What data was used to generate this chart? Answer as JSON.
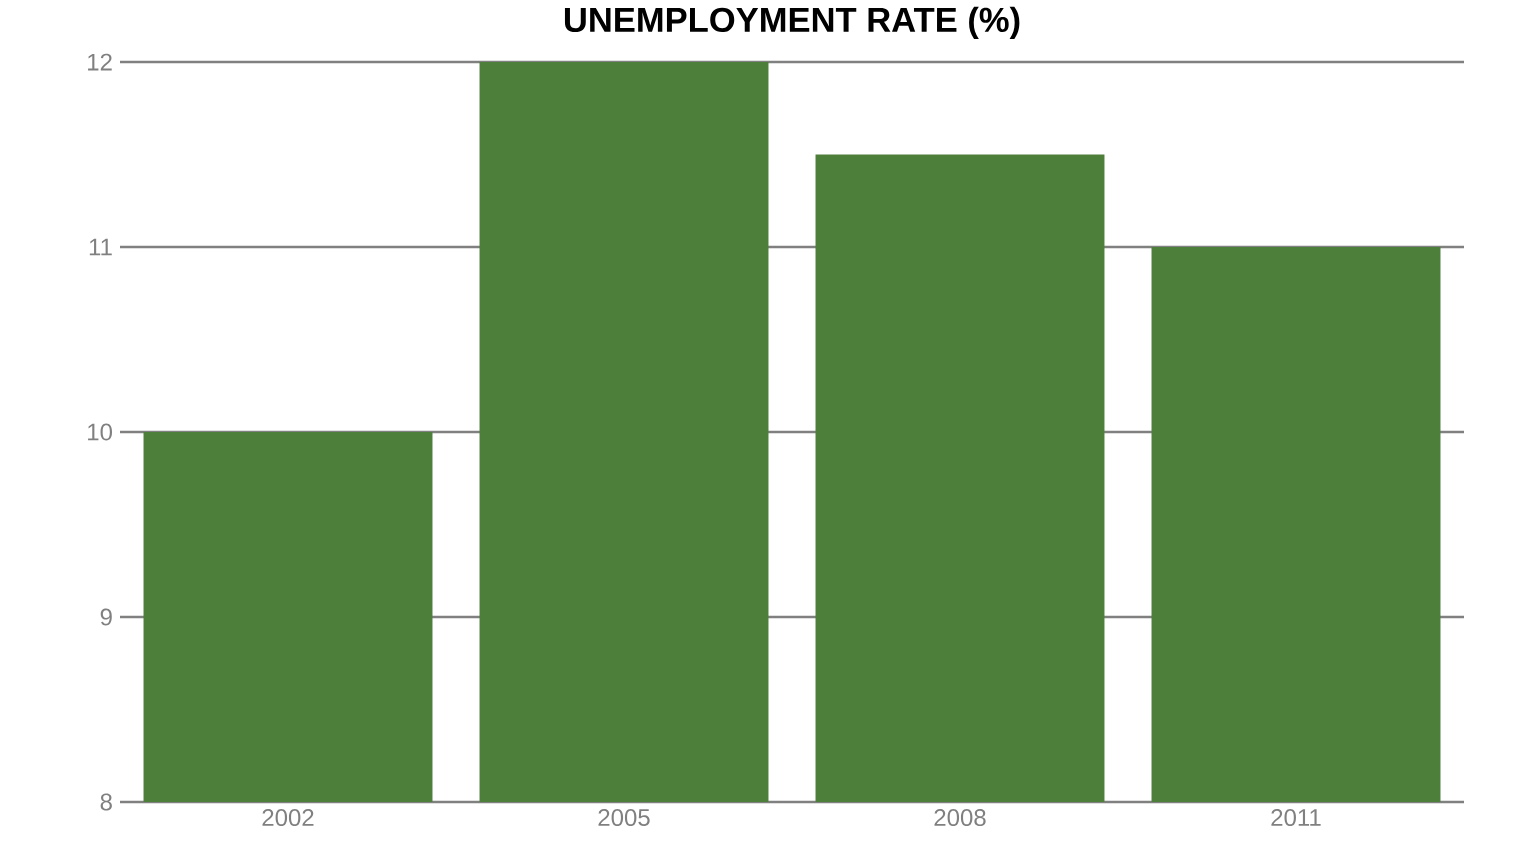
{
  "chart_data": {
    "type": "bar",
    "title": "UNEMPLOYMENT RATE (%)",
    "categories": [
      "2002",
      "2005",
      "2008",
      "2011"
    ],
    "values": [
      10,
      12,
      11.5,
      11
    ],
    "color": "#4e7f3a",
    "ylim": [
      8,
      12
    ],
    "yticks": [
      8,
      9,
      10,
      11,
      12
    ],
    "grid": "y"
  }
}
